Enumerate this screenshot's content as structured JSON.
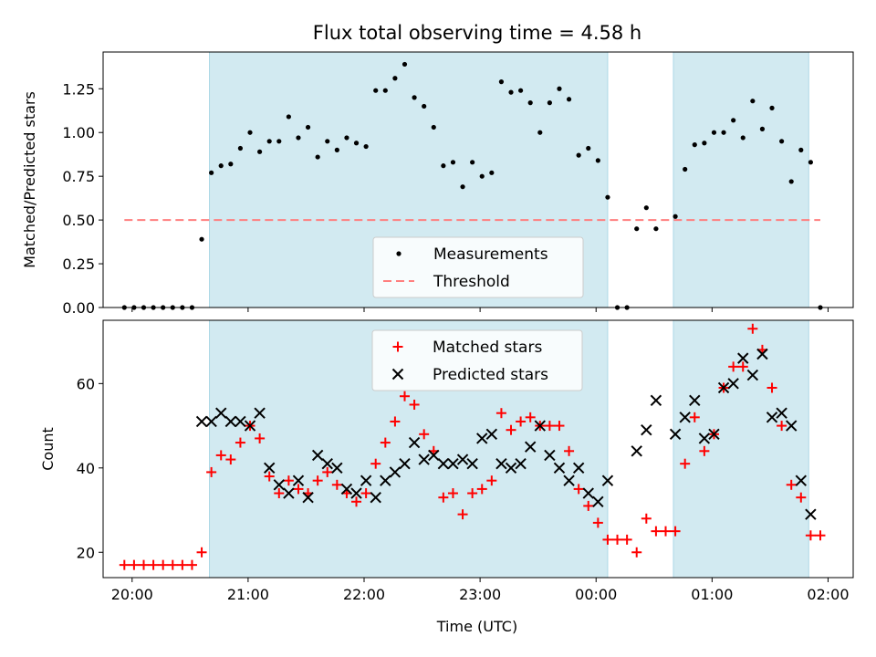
{
  "title": "Flux total observing time = 4.58 h",
  "xlabel": "Time (UTC)",
  "colors": {
    "shade": "#add8e6",
    "measurement": "#000000",
    "threshold": "#ff7f7f",
    "matched": "#ff0000",
    "predicted": "#000000"
  },
  "chart_data": [
    {
      "type": "scatter",
      "ylabel": "Matched/Predicted stars",
      "xlim": [
        "19:45",
        "02:13"
      ],
      "ylim": [
        0,
        1.46
      ],
      "x_ticks": [
        "20:00",
        "21:00",
        "22:00",
        "23:00",
        "00:00",
        "01:00",
        "02:00"
      ],
      "y_ticks": [
        "0.00",
        "0.25",
        "0.50",
        "0.75",
        "1.00",
        "1.25"
      ],
      "shaded_intervals": [
        [
          "20:40",
          "00:06"
        ],
        [
          "00:40",
          "01:50"
        ]
      ],
      "legend_position": "lower center",
      "series": [
        {
          "name": "Measurements",
          "marker": "dot",
          "points": [
            [
              "19:56",
              0.0
            ],
            [
              "20:01",
              0.0
            ],
            [
              "20:06",
              0.0
            ],
            [
              "20:11",
              0.0
            ],
            [
              "20:16",
              0.0
            ],
            [
              "20:21",
              0.0
            ],
            [
              "20:26",
              0.0
            ],
            [
              "20:31",
              0.0
            ],
            [
              "20:36",
              0.39
            ],
            [
              "20:41",
              0.77
            ],
            [
              "20:46",
              0.81
            ],
            [
              "20:51",
              0.82
            ],
            [
              "20:56",
              0.91
            ],
            [
              "21:01",
              1.0
            ],
            [
              "21:06",
              0.89
            ],
            [
              "21:11",
              0.95
            ],
            [
              "21:16",
              0.95
            ],
            [
              "21:21",
              1.09
            ],
            [
              "21:26",
              0.97
            ],
            [
              "21:31",
              1.03
            ],
            [
              "21:36",
              0.86
            ],
            [
              "21:41",
              0.95
            ],
            [
              "21:46",
              0.9
            ],
            [
              "21:51",
              0.97
            ],
            [
              "21:56",
              0.94
            ],
            [
              "22:01",
              0.92
            ],
            [
              "22:06",
              1.24
            ],
            [
              "22:11",
              1.24
            ],
            [
              "22:16",
              1.31
            ],
            [
              "22:21",
              1.39
            ],
            [
              "22:26",
              1.2
            ],
            [
              "22:31",
              1.15
            ],
            [
              "22:36",
              1.03
            ],
            [
              "22:41",
              0.81
            ],
            [
              "22:46",
              0.83
            ],
            [
              "22:51",
              0.69
            ],
            [
              "22:56",
              0.83
            ],
            [
              "23:01",
              0.75
            ],
            [
              "23:06",
              0.77
            ],
            [
              "23:11",
              1.29
            ],
            [
              "23:16",
              1.23
            ],
            [
              "23:21",
              1.24
            ],
            [
              "23:26",
              1.17
            ],
            [
              "23:31",
              1.0
            ],
            [
              "23:36",
              1.17
            ],
            [
              "23:41",
              1.25
            ],
            [
              "23:46",
              1.19
            ],
            [
              "23:51",
              0.87
            ],
            [
              "23:56",
              0.91
            ],
            [
              "00:01",
              0.84
            ],
            [
              "00:06",
              0.63
            ],
            [
              "00:11",
              0.0
            ],
            [
              "00:16",
              0.0
            ],
            [
              "00:21",
              0.45
            ],
            [
              "00:26",
              0.57
            ],
            [
              "00:31",
              0.45
            ],
            [
              "00:41",
              0.52
            ],
            [
              "00:46",
              0.79
            ],
            [
              "00:51",
              0.93
            ],
            [
              "00:56",
              0.94
            ],
            [
              "01:01",
              1.0
            ],
            [
              "01:06",
              1.0
            ],
            [
              "01:11",
              1.07
            ],
            [
              "01:16",
              0.97
            ],
            [
              "01:21",
              1.18
            ],
            [
              "01:26",
              1.02
            ],
            [
              "01:31",
              1.14
            ],
            [
              "01:36",
              0.95
            ],
            [
              "01:41",
              0.72
            ],
            [
              "01:46",
              0.9
            ],
            [
              "01:51",
              0.83
            ],
            [
              "01:56",
              0.0
            ]
          ]
        },
        {
          "name": "Threshold",
          "style": "dashed",
          "points": [
            [
              "19:56",
              0.5
            ],
            [
              "01:56",
              0.5
            ]
          ]
        }
      ]
    },
    {
      "type": "scatter",
      "ylabel": "Count",
      "xlim": [
        "19:45",
        "02:13"
      ],
      "ylim": [
        14,
        75
      ],
      "x_ticks": [
        "20:00",
        "21:00",
        "22:00",
        "23:00",
        "00:00",
        "01:00",
        "02:00"
      ],
      "y_ticks": [
        "20",
        "40",
        "60"
      ],
      "shaded_intervals": [
        [
          "20:40",
          "00:06"
        ],
        [
          "00:40",
          "01:50"
        ]
      ],
      "legend_position": "upper center",
      "series": [
        {
          "name": "Matched stars",
          "marker": "plus",
          "points": [
            [
              "19:56",
              17
            ],
            [
              "20:01",
              17
            ],
            [
              "20:06",
              17
            ],
            [
              "20:11",
              17
            ],
            [
              "20:16",
              17
            ],
            [
              "20:21",
              17
            ],
            [
              "20:26",
              17
            ],
            [
              "20:31",
              17
            ],
            [
              "20:36",
              20
            ],
            [
              "20:41",
              39
            ],
            [
              "20:46",
              43
            ],
            [
              "20:51",
              42
            ],
            [
              "20:56",
              46
            ],
            [
              "21:01",
              50
            ],
            [
              "21:06",
              47
            ],
            [
              "21:11",
              38
            ],
            [
              "21:16",
              34
            ],
            [
              "21:21",
              37
            ],
            [
              "21:26",
              35
            ],
            [
              "21:31",
              34
            ],
            [
              "21:36",
              37
            ],
            [
              "21:41",
              39
            ],
            [
              "21:46",
              36
            ],
            [
              "21:51",
              34
            ],
            [
              "21:56",
              32
            ],
            [
              "22:01",
              34
            ],
            [
              "22:06",
              41
            ],
            [
              "22:11",
              46
            ],
            [
              "22:16",
              51
            ],
            [
              "22:21",
              57
            ],
            [
              "22:26",
              55
            ],
            [
              "22:31",
              48
            ],
            [
              "22:36",
              44
            ],
            [
              "22:41",
              33
            ],
            [
              "22:46",
              34
            ],
            [
              "22:51",
              29
            ],
            [
              "22:56",
              34
            ],
            [
              "23:01",
              35
            ],
            [
              "23:06",
              37
            ],
            [
              "23:11",
              53
            ],
            [
              "23:16",
              49
            ],
            [
              "23:21",
              51
            ],
            [
              "23:26",
              52
            ],
            [
              "23:31",
              50
            ],
            [
              "23:36",
              50
            ],
            [
              "23:41",
              50
            ],
            [
              "23:46",
              44
            ],
            [
              "23:51",
              35
            ],
            [
              "23:56",
              31
            ],
            [
              "00:01",
              27
            ],
            [
              "00:06",
              23
            ],
            [
              "00:11",
              23
            ],
            [
              "00:16",
              23
            ],
            [
              "00:21",
              20
            ],
            [
              "00:26",
              28
            ],
            [
              "00:31",
              25
            ],
            [
              "00:36",
              25
            ],
            [
              "00:41",
              25
            ],
            [
              "00:46",
              41
            ],
            [
              "00:51",
              52
            ],
            [
              "00:56",
              44
            ],
            [
              "01:01",
              48
            ],
            [
              "01:06",
              59
            ],
            [
              "01:11",
              64
            ],
            [
              "01:16",
              64
            ],
            [
              "01:21",
              73
            ],
            [
              "01:26",
              68
            ],
            [
              "01:31",
              59
            ],
            [
              "01:36",
              50
            ],
            [
              "01:41",
              36
            ],
            [
              "01:46",
              33
            ],
            [
              "01:51",
              24
            ],
            [
              "01:56",
              24
            ]
          ]
        },
        {
          "name": "Predicted stars",
          "marker": "x",
          "points": [
            [
              "20:36",
              51
            ],
            [
              "20:41",
              51
            ],
            [
              "20:46",
              53
            ],
            [
              "20:51",
              51
            ],
            [
              "20:56",
              51
            ],
            [
              "21:01",
              50
            ],
            [
              "21:06",
              53
            ],
            [
              "21:11",
              40
            ],
            [
              "21:16",
              36
            ],
            [
              "21:21",
              34
            ],
            [
              "21:26",
              37
            ],
            [
              "21:31",
              33
            ],
            [
              "21:36",
              43
            ],
            [
              "21:41",
              41
            ],
            [
              "21:46",
              40
            ],
            [
              "21:51",
              35
            ],
            [
              "21:56",
              34
            ],
            [
              "22:01",
              37
            ],
            [
              "22:06",
              33
            ],
            [
              "22:11",
              37
            ],
            [
              "22:16",
              39
            ],
            [
              "22:21",
              41
            ],
            [
              "22:26",
              46
            ],
            [
              "22:31",
              42
            ],
            [
              "22:36",
              43
            ],
            [
              "22:41",
              41
            ],
            [
              "22:46",
              41
            ],
            [
              "22:51",
              42
            ],
            [
              "22:56",
              41
            ],
            [
              "23:01",
              47
            ],
            [
              "23:06",
              48
            ],
            [
              "23:11",
              41
            ],
            [
              "23:16",
              40
            ],
            [
              "23:21",
              41
            ],
            [
              "23:26",
              45
            ],
            [
              "23:31",
              50
            ],
            [
              "23:36",
              43
            ],
            [
              "23:41",
              40
            ],
            [
              "23:46",
              37
            ],
            [
              "23:51",
              40
            ],
            [
              "23:56",
              34
            ],
            [
              "00:01",
              32
            ],
            [
              "00:06",
              37
            ],
            [
              "00:21",
              44
            ],
            [
              "00:26",
              49
            ],
            [
              "00:31",
              56
            ],
            [
              "00:41",
              48
            ],
            [
              "00:46",
              52
            ],
            [
              "00:51",
              56
            ],
            [
              "00:56",
              47
            ],
            [
              "01:01",
              48
            ],
            [
              "01:06",
              59
            ],
            [
              "01:11",
              60
            ],
            [
              "01:16",
              66
            ],
            [
              "01:21",
              62
            ],
            [
              "01:26",
              67
            ],
            [
              "01:31",
              52
            ],
            [
              "01:36",
              53
            ],
            [
              "01:41",
              50
            ],
            [
              "01:46",
              37
            ],
            [
              "01:51",
              29
            ]
          ]
        }
      ]
    }
  ]
}
